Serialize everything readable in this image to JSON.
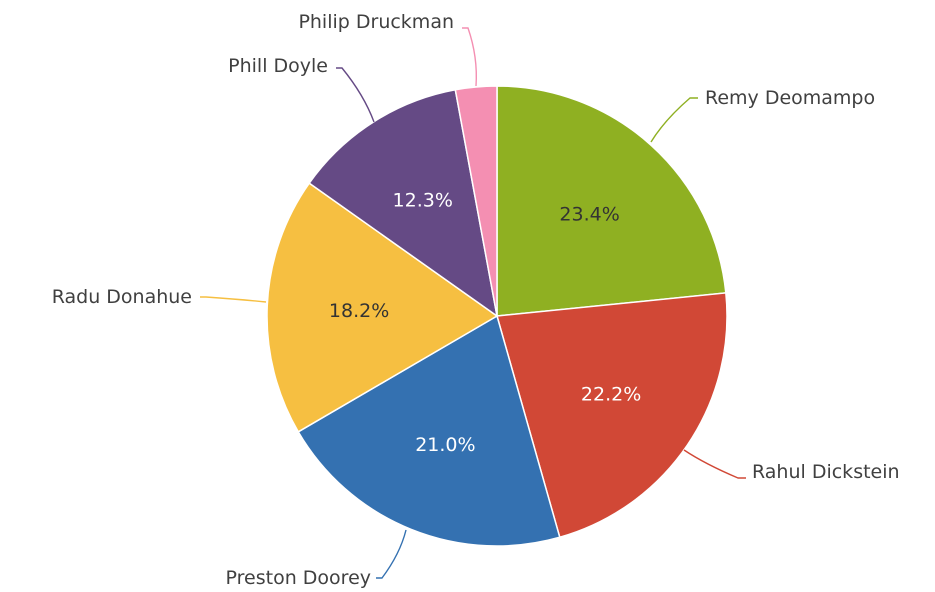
{
  "chart_data": {
    "type": "pie",
    "title": "",
    "start_angle_deg": 0,
    "direction": "clockwise",
    "legend": "none",
    "slices": [
      {
        "name": "Remy Deomampo",
        "value": 23.4,
        "label": "23.4%",
        "color": "#8fb022",
        "label_color": "#333333"
      },
      {
        "name": "Rahul Dickstein",
        "value": 22.2,
        "label": "22.2%",
        "color": "#d14836",
        "label_color": "#ffffff"
      },
      {
        "name": "Preston Doorey",
        "value": 21.0,
        "label": "21.0%",
        "color": "#3471b1",
        "label_color": "#ffffff"
      },
      {
        "name": "Radu Donahue",
        "value": 18.2,
        "label": "18.2%",
        "color": "#f6bf41",
        "label_color": "#333333"
      },
      {
        "name": "Phill Doyle",
        "value": 12.3,
        "label": "12.3%",
        "color": "#654a85",
        "label_color": "#ffffff"
      },
      {
        "name": "Philip Druckman",
        "value": 2.9,
        "label": "",
        "color": "#f48fb2",
        "label_color": "#333333"
      }
    ]
  }
}
